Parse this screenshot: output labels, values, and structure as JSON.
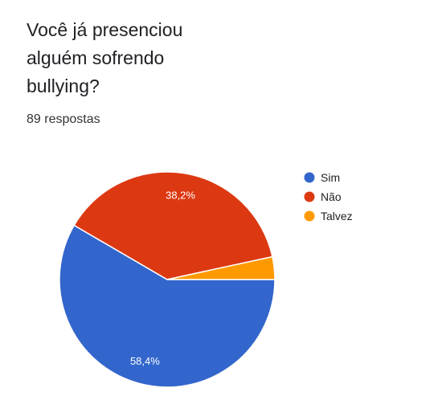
{
  "question": {
    "title": "Você já presenciou\nalguém sofrendo\nbullying?",
    "responses": "89 respostas"
  },
  "chart_data": {
    "type": "pie",
    "title": "Você já presenciou alguém sofrendo bullying?",
    "categories": [
      "Sim",
      "Não",
      "Talvez"
    ],
    "values": [
      58.4,
      38.2,
      3.4
    ],
    "data_labels": [
      "58,4%",
      "38,2%",
      ""
    ],
    "colors": [
      "#3366cc",
      "#dc3912",
      "#ff9900"
    ],
    "legend": "right",
    "unit": "%"
  }
}
